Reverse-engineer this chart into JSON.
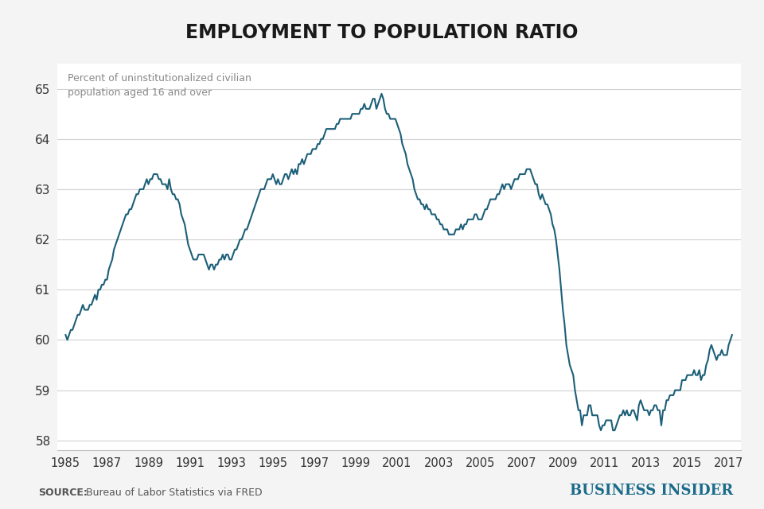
{
  "title": "EMPLOYMENT TO POPULATION RATIO",
  "subtitle_line1": "Percent of uninstitutionalized civilian",
  "subtitle_line2": "population aged 16 and over",
  "source_bold": "SOURCE:",
  "source_text": " Bureau of Labor Statistics via FRED",
  "branding": "BUSINESS INSIDER",
  "line_color": "#1c5f78",
  "background_color": "#f4f4f4",
  "plot_background": "#ffffff",
  "grid_color": "#d0d0d0",
  "axis_line_color": "#c0c0c0",
  "tick_label_color": "#333333",
  "subtitle_color": "#888888",
  "source_color": "#555555",
  "branding_color": "#1a6b8a",
  "ylim": [
    57.8,
    65.5
  ],
  "yticks": [
    58,
    59,
    60,
    61,
    62,
    63,
    64,
    65
  ],
  "xlim_left": 1984.6,
  "xlim_right": 2017.6,
  "xtick_years": [
    1985,
    1987,
    1989,
    1991,
    1993,
    1995,
    1997,
    1999,
    2001,
    2003,
    2005,
    2007,
    2009,
    2011,
    2013,
    2015,
    2017
  ],
  "data": {
    "1985-01": 60.1,
    "1985-02": 60.0,
    "1985-03": 60.1,
    "1985-04": 60.2,
    "1985-05": 60.2,
    "1985-06": 60.3,
    "1985-07": 60.4,
    "1985-08": 60.5,
    "1985-09": 60.5,
    "1985-10": 60.6,
    "1985-11": 60.7,
    "1985-12": 60.6,
    "1986-01": 60.6,
    "1986-02": 60.6,
    "1986-03": 60.7,
    "1986-04": 60.7,
    "1986-05": 60.8,
    "1986-06": 60.9,
    "1986-07": 60.8,
    "1986-08": 61.0,
    "1986-09": 61.0,
    "1986-10": 61.1,
    "1986-11": 61.1,
    "1986-12": 61.2,
    "1987-01": 61.2,
    "1987-02": 61.4,
    "1987-03": 61.5,
    "1987-04": 61.6,
    "1987-05": 61.8,
    "1987-06": 61.9,
    "1987-07": 62.0,
    "1987-08": 62.1,
    "1987-09": 62.2,
    "1987-10": 62.3,
    "1987-11": 62.4,
    "1987-12": 62.5,
    "1988-01": 62.5,
    "1988-02": 62.6,
    "1988-03": 62.6,
    "1988-04": 62.7,
    "1988-05": 62.8,
    "1988-06": 62.9,
    "1988-07": 62.9,
    "1988-08": 63.0,
    "1988-09": 63.0,
    "1988-10": 63.0,
    "1988-11": 63.1,
    "1988-12": 63.2,
    "1989-01": 63.1,
    "1989-02": 63.2,
    "1989-03": 63.2,
    "1989-04": 63.3,
    "1989-05": 63.3,
    "1989-06": 63.3,
    "1989-07": 63.2,
    "1989-08": 63.2,
    "1989-09": 63.1,
    "1989-10": 63.1,
    "1989-11": 63.1,
    "1989-12": 63.0,
    "1990-01": 63.2,
    "1990-02": 63.0,
    "1990-03": 62.9,
    "1990-04": 62.9,
    "1990-05": 62.8,
    "1990-06": 62.8,
    "1990-07": 62.7,
    "1990-08": 62.5,
    "1990-09": 62.4,
    "1990-10": 62.3,
    "1990-11": 62.1,
    "1990-12": 61.9,
    "1991-01": 61.8,
    "1991-02": 61.7,
    "1991-03": 61.6,
    "1991-04": 61.6,
    "1991-05": 61.6,
    "1991-06": 61.7,
    "1991-07": 61.7,
    "1991-08": 61.7,
    "1991-09": 61.7,
    "1991-10": 61.6,
    "1991-11": 61.5,
    "1991-12": 61.4,
    "1992-01": 61.5,
    "1992-02": 61.5,
    "1992-03": 61.4,
    "1992-04": 61.5,
    "1992-05": 61.5,
    "1992-06": 61.6,
    "1992-07": 61.6,
    "1992-08": 61.7,
    "1992-09": 61.6,
    "1992-10": 61.7,
    "1992-11": 61.7,
    "1992-12": 61.6,
    "1993-01": 61.6,
    "1993-02": 61.7,
    "1993-03": 61.8,
    "1993-04": 61.8,
    "1993-05": 61.9,
    "1993-06": 62.0,
    "1993-07": 62.0,
    "1993-08": 62.1,
    "1993-09": 62.2,
    "1993-10": 62.2,
    "1993-11": 62.3,
    "1993-12": 62.4,
    "1994-01": 62.5,
    "1994-02": 62.6,
    "1994-03": 62.7,
    "1994-04": 62.8,
    "1994-05": 62.9,
    "1994-06": 63.0,
    "1994-07": 63.0,
    "1994-08": 63.0,
    "1994-09": 63.1,
    "1994-10": 63.2,
    "1994-11": 63.2,
    "1994-12": 63.2,
    "1995-01": 63.3,
    "1995-02": 63.2,
    "1995-03": 63.1,
    "1995-04": 63.2,
    "1995-05": 63.1,
    "1995-06": 63.1,
    "1995-07": 63.2,
    "1995-08": 63.3,
    "1995-09": 63.3,
    "1995-10": 63.2,
    "1995-11": 63.3,
    "1995-12": 63.4,
    "1996-01": 63.3,
    "1996-02": 63.4,
    "1996-03": 63.3,
    "1996-04": 63.5,
    "1996-05": 63.5,
    "1996-06": 63.6,
    "1996-07": 63.5,
    "1996-08": 63.6,
    "1996-09": 63.7,
    "1996-10": 63.7,
    "1996-11": 63.7,
    "1996-12": 63.8,
    "1997-01": 63.8,
    "1997-02": 63.8,
    "1997-03": 63.9,
    "1997-04": 63.9,
    "1997-05": 64.0,
    "1997-06": 64.0,
    "1997-07": 64.1,
    "1997-08": 64.2,
    "1997-09": 64.2,
    "1997-10": 64.2,
    "1997-11": 64.2,
    "1997-12": 64.2,
    "1998-01": 64.2,
    "1998-02": 64.3,
    "1998-03": 64.3,
    "1998-04": 64.4,
    "1998-05": 64.4,
    "1998-06": 64.4,
    "1998-07": 64.4,
    "1998-08": 64.4,
    "1998-09": 64.4,
    "1998-10": 64.4,
    "1998-11": 64.5,
    "1998-12": 64.5,
    "1999-01": 64.5,
    "1999-02": 64.5,
    "1999-03": 64.5,
    "1999-04": 64.6,
    "1999-05": 64.6,
    "1999-06": 64.7,
    "1999-07": 64.6,
    "1999-08": 64.6,
    "1999-09": 64.6,
    "1999-10": 64.7,
    "1999-11": 64.8,
    "1999-12": 64.8,
    "2000-01": 64.6,
    "2000-02": 64.7,
    "2000-03": 64.8,
    "2000-04": 64.9,
    "2000-05": 64.8,
    "2000-06": 64.6,
    "2000-07": 64.5,
    "2000-08": 64.5,
    "2000-09": 64.4,
    "2000-10": 64.4,
    "2000-11": 64.4,
    "2000-12": 64.4,
    "2001-01": 64.3,
    "2001-02": 64.2,
    "2001-03": 64.1,
    "2001-04": 63.9,
    "2001-05": 63.8,
    "2001-06": 63.7,
    "2001-07": 63.5,
    "2001-08": 63.4,
    "2001-09": 63.3,
    "2001-10": 63.2,
    "2001-11": 63.0,
    "2001-12": 62.9,
    "2002-01": 62.8,
    "2002-02": 62.8,
    "2002-03": 62.7,
    "2002-04": 62.7,
    "2002-05": 62.6,
    "2002-06": 62.7,
    "2002-07": 62.6,
    "2002-08": 62.6,
    "2002-09": 62.5,
    "2002-10": 62.5,
    "2002-11": 62.5,
    "2002-12": 62.4,
    "2003-01": 62.4,
    "2003-02": 62.3,
    "2003-03": 62.3,
    "2003-04": 62.2,
    "2003-05": 62.2,
    "2003-06": 62.2,
    "2003-07": 62.1,
    "2003-08": 62.1,
    "2003-09": 62.1,
    "2003-10": 62.1,
    "2003-11": 62.2,
    "2003-12": 62.2,
    "2004-01": 62.2,
    "2004-02": 62.3,
    "2004-03": 62.2,
    "2004-04": 62.3,
    "2004-05": 62.3,
    "2004-06": 62.4,
    "2004-07": 62.4,
    "2004-08": 62.4,
    "2004-09": 62.4,
    "2004-10": 62.5,
    "2004-11": 62.5,
    "2004-12": 62.4,
    "2005-01": 62.4,
    "2005-02": 62.4,
    "2005-03": 62.5,
    "2005-04": 62.6,
    "2005-05": 62.6,
    "2005-06": 62.7,
    "2005-07": 62.8,
    "2005-08": 62.8,
    "2005-09": 62.8,
    "2005-10": 62.8,
    "2005-11": 62.9,
    "2005-12": 62.9,
    "2006-01": 63.0,
    "2006-02": 63.1,
    "2006-03": 63.0,
    "2006-04": 63.1,
    "2006-05": 63.1,
    "2006-06": 63.1,
    "2006-07": 63.0,
    "2006-08": 63.1,
    "2006-09": 63.2,
    "2006-10": 63.2,
    "2006-11": 63.2,
    "2006-12": 63.3,
    "2007-01": 63.3,
    "2007-02": 63.3,
    "2007-03": 63.3,
    "2007-04": 63.4,
    "2007-05": 63.4,
    "2007-06": 63.4,
    "2007-07": 63.3,
    "2007-08": 63.2,
    "2007-09": 63.1,
    "2007-10": 63.1,
    "2007-11": 62.9,
    "2007-12": 62.8,
    "2008-01": 62.9,
    "2008-02": 62.8,
    "2008-03": 62.7,
    "2008-04": 62.7,
    "2008-05": 62.6,
    "2008-06": 62.5,
    "2008-07": 62.3,
    "2008-08": 62.2,
    "2008-09": 62.0,
    "2008-10": 61.7,
    "2008-11": 61.4,
    "2008-12": 61.0,
    "2009-01": 60.6,
    "2009-02": 60.3,
    "2009-03": 59.9,
    "2009-04": 59.7,
    "2009-05": 59.5,
    "2009-06": 59.4,
    "2009-07": 59.3,
    "2009-08": 59.0,
    "2009-09": 58.8,
    "2009-10": 58.6,
    "2009-11": 58.6,
    "2009-12": 58.3,
    "2010-01": 58.5,
    "2010-02": 58.5,
    "2010-03": 58.5,
    "2010-04": 58.7,
    "2010-05": 58.7,
    "2010-06": 58.5,
    "2010-07": 58.5,
    "2010-08": 58.5,
    "2010-09": 58.5,
    "2010-10": 58.3,
    "2010-11": 58.2,
    "2010-12": 58.3,
    "2011-01": 58.3,
    "2011-02": 58.4,
    "2011-03": 58.4,
    "2011-04": 58.4,
    "2011-05": 58.4,
    "2011-06": 58.2,
    "2011-07": 58.2,
    "2011-08": 58.3,
    "2011-09": 58.4,
    "2011-10": 58.5,
    "2011-11": 58.5,
    "2011-12": 58.6,
    "2012-01": 58.5,
    "2012-02": 58.6,
    "2012-03": 58.5,
    "2012-04": 58.5,
    "2012-05": 58.6,
    "2012-06": 58.6,
    "2012-07": 58.5,
    "2012-08": 58.4,
    "2012-09": 58.7,
    "2012-10": 58.8,
    "2012-11": 58.7,
    "2012-12": 58.6,
    "2013-01": 58.6,
    "2013-02": 58.6,
    "2013-03": 58.5,
    "2013-04": 58.6,
    "2013-05": 58.6,
    "2013-06": 58.7,
    "2013-07": 58.7,
    "2013-08": 58.6,
    "2013-09": 58.6,
    "2013-10": 58.3,
    "2013-11": 58.6,
    "2013-12": 58.6,
    "2014-01": 58.8,
    "2014-02": 58.8,
    "2014-03": 58.9,
    "2014-04": 58.9,
    "2014-05": 58.9,
    "2014-06": 59.0,
    "2014-07": 59.0,
    "2014-08": 59.0,
    "2014-09": 59.0,
    "2014-10": 59.2,
    "2014-11": 59.2,
    "2014-12": 59.2,
    "2015-01": 59.3,
    "2015-02": 59.3,
    "2015-03": 59.3,
    "2015-04": 59.3,
    "2015-05": 59.4,
    "2015-06": 59.3,
    "2015-07": 59.3,
    "2015-08": 59.4,
    "2015-09": 59.2,
    "2015-10": 59.3,
    "2015-11": 59.3,
    "2015-12": 59.5,
    "2016-01": 59.6,
    "2016-02": 59.8,
    "2016-03": 59.9,
    "2016-04": 59.8,
    "2016-05": 59.7,
    "2016-06": 59.6,
    "2016-07": 59.7,
    "2016-08": 59.7,
    "2016-09": 59.8,
    "2016-10": 59.7,
    "2016-11": 59.7,
    "2016-12": 59.7,
    "2017-01": 59.9,
    "2017-02": 60.0,
    "2017-03": 60.1
  }
}
